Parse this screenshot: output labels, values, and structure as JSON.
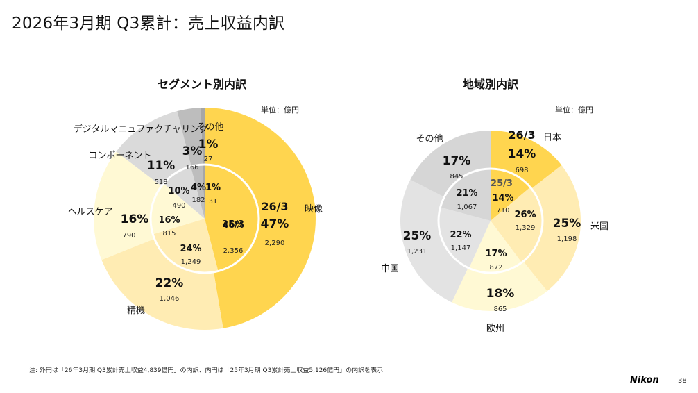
{
  "page": {
    "title": "2026年3月期 Q3累計：売上収益内訳",
    "note": "注:  外円は「26年3月期 Q3累計売上収益4,839億円」の内訳、内円は「25年3月期 Q3累計売上収益5,126億円」の内訳を表示",
    "brand": "Nikon",
    "page_number": "38"
  },
  "chart_data": [
    {
      "type": "pie",
      "title": "セグメント別内訳",
      "unit": "単位：億円",
      "outer_label": "26/3",
      "inner_label": "25/3",
      "categories": [
        "映像",
        "精機",
        "ヘルスケア",
        "コンポーネント",
        "デジタルマニュファクチャリング",
        "その他"
      ],
      "colors": [
        "#FFD54F",
        "#FFECB3",
        "#FFF9D4",
        "#DADADA",
        "#BDBDBD",
        "#A6A6A6"
      ],
      "series": [
        {
          "name": "26/3",
          "ring": "outer",
          "values": [
            2290,
            1046,
            790,
            518,
            166,
            27
          ],
          "percents": [
            "47%",
            "22%",
            "16%",
            "11%",
            "3%",
            "1%"
          ],
          "value_labels": [
            "2,290",
            "1,046",
            "790",
            "518",
            "166",
            "27"
          ]
        },
        {
          "name": "25/3",
          "ring": "inner",
          "values": [
            2356,
            1249,
            815,
            490,
            182,
            31
          ],
          "percents": [
            "46%",
            "24%",
            "16%",
            "10%",
            "4%",
            "1%"
          ],
          "value_labels": [
            "2,356",
            "1,249",
            "815",
            "490",
            "182",
            "31"
          ]
        }
      ]
    },
    {
      "type": "pie",
      "title": "地域別内訳",
      "unit": "単位：億円",
      "outer_label": "26/3",
      "inner_label": "25/3",
      "categories": [
        "日本",
        "米国",
        "欧州",
        "中国",
        "その他"
      ],
      "colors": [
        "#FFD54F",
        "#FFECB3",
        "#FFF9D4",
        "#E3E3E3",
        "#D6D6D6"
      ],
      "series": [
        {
          "name": "26/3",
          "ring": "outer",
          "values": [
            698,
            1198,
            865,
            1231,
            845
          ],
          "percents": [
            "14%",
            "25%",
            "18%",
            "25%",
            "17%"
          ],
          "value_labels": [
            "698",
            "1,198",
            "865",
            "1,231",
            "845"
          ]
        },
        {
          "name": "25/3",
          "ring": "inner",
          "values": [
            710,
            1329,
            872,
            1147,
            1067
          ],
          "percents": [
            "14%",
            "26%",
            "17%",
            "22%",
            "21%"
          ],
          "value_labels": [
            "710",
            "1,329",
            "872",
            "1,147",
            "1,067"
          ]
        }
      ]
    }
  ]
}
